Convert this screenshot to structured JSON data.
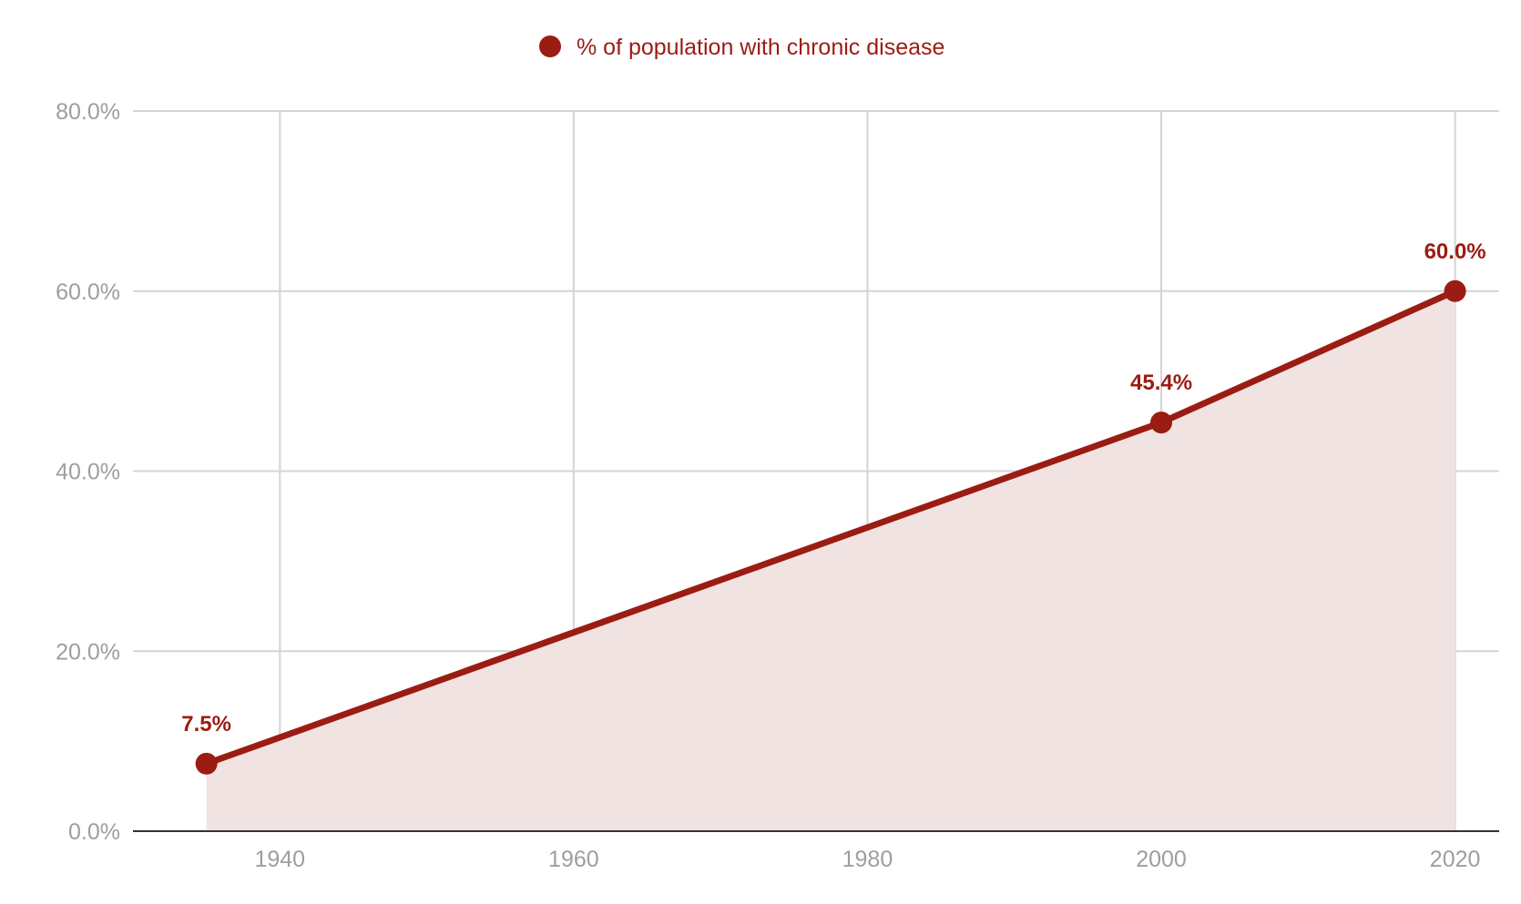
{
  "chart_data": {
    "type": "area",
    "legend": {
      "position": "top",
      "label": "% of population with chronic disease"
    },
    "series": [
      {
        "name": "% of population with chronic disease",
        "color": "#9b1c13",
        "fill_color": "#f2e3e3",
        "points": [
          {
            "x": 1935,
            "y": 7.5,
            "label": "7.5%"
          },
          {
            "x": 2000,
            "y": 45.4,
            "label": "45.4%"
          },
          {
            "x": 2020,
            "y": 60.0,
            "label": "60.0%"
          }
        ]
      }
    ],
    "x_ticks": [
      {
        "value": 1940,
        "label": "1940"
      },
      {
        "value": 1960,
        "label": "1960"
      },
      {
        "value": 1980,
        "label": "1980"
      },
      {
        "value": 2000,
        "label": "2000"
      },
      {
        "value": 2020,
        "label": "2020"
      }
    ],
    "y_ticks": [
      {
        "value": 0,
        "label": "0.0%"
      },
      {
        "value": 20,
        "label": "20.0%"
      },
      {
        "value": 40,
        "label": "40.0%"
      },
      {
        "value": 60,
        "label": "60.0%"
      },
      {
        "value": 80,
        "label": "80.0%"
      }
    ],
    "xlim": [
      1930,
      2023
    ],
    "ylim": [
      0,
      80
    ],
    "grid": true,
    "colors": {
      "grid": "#d4d4d4",
      "axis": "#333333",
      "tick_text": "#9e9e9e"
    }
  }
}
